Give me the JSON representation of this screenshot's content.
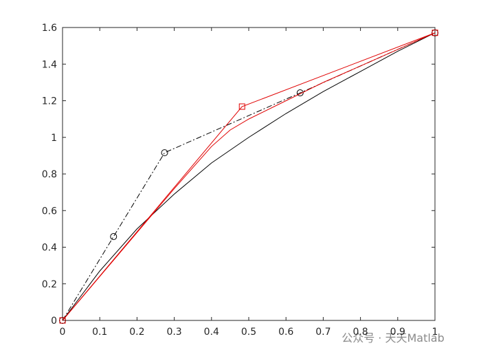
{
  "chart_data": {
    "type": "line",
    "xlim": [
      0,
      1
    ],
    "ylim": [
      0,
      1.6
    ],
    "xticks": [
      0,
      0.1,
      0.2,
      0.3,
      0.4,
      0.5,
      0.6,
      0.7,
      0.8,
      0.9,
      1
    ],
    "yticks": [
      0,
      0.2,
      0.4,
      0.6,
      0.8,
      1,
      1.2,
      1.4,
      1.6
    ],
    "grid": false,
    "series": [
      {
        "color": "#000000",
        "dash": "dashdot",
        "marker": "circle",
        "x": [
          0,
          0.137,
          0.274,
          0.638,
          1
        ],
        "values": [
          0,
          0.458,
          0.916,
          1.243,
          1.571
        ]
      },
      {
        "color": "#000000",
        "dash": "solid",
        "marker": "none",
        "x": [
          0,
          0.1,
          0.2,
          0.3,
          0.4,
          0.5,
          0.6,
          0.7,
          0.8,
          0.9,
          1
        ],
        "values": [
          0,
          0.27,
          0.5,
          0.69,
          0.86,
          1.0,
          1.13,
          1.25,
          1.36,
          1.47,
          1.571
        ]
      },
      {
        "color": "#e00000",
        "dash": "solid",
        "marker": "square",
        "x": [
          0,
          0.482,
          1
        ],
        "values": [
          0,
          1.168,
          1.571
        ]
      },
      {
        "color": "#e00000",
        "dash": "solid",
        "marker": "none",
        "x": [
          0,
          0.1,
          0.2,
          0.3,
          0.4,
          0.45,
          0.5,
          0.6,
          0.7,
          0.8,
          0.9,
          1
        ],
        "values": [
          0,
          0.24,
          0.48,
          0.72,
          0.95,
          1.04,
          1.1,
          1.2,
          1.3,
          1.39,
          1.48,
          1.571
        ]
      }
    ],
    "watermark": "公众号 · 天天Matlab"
  }
}
